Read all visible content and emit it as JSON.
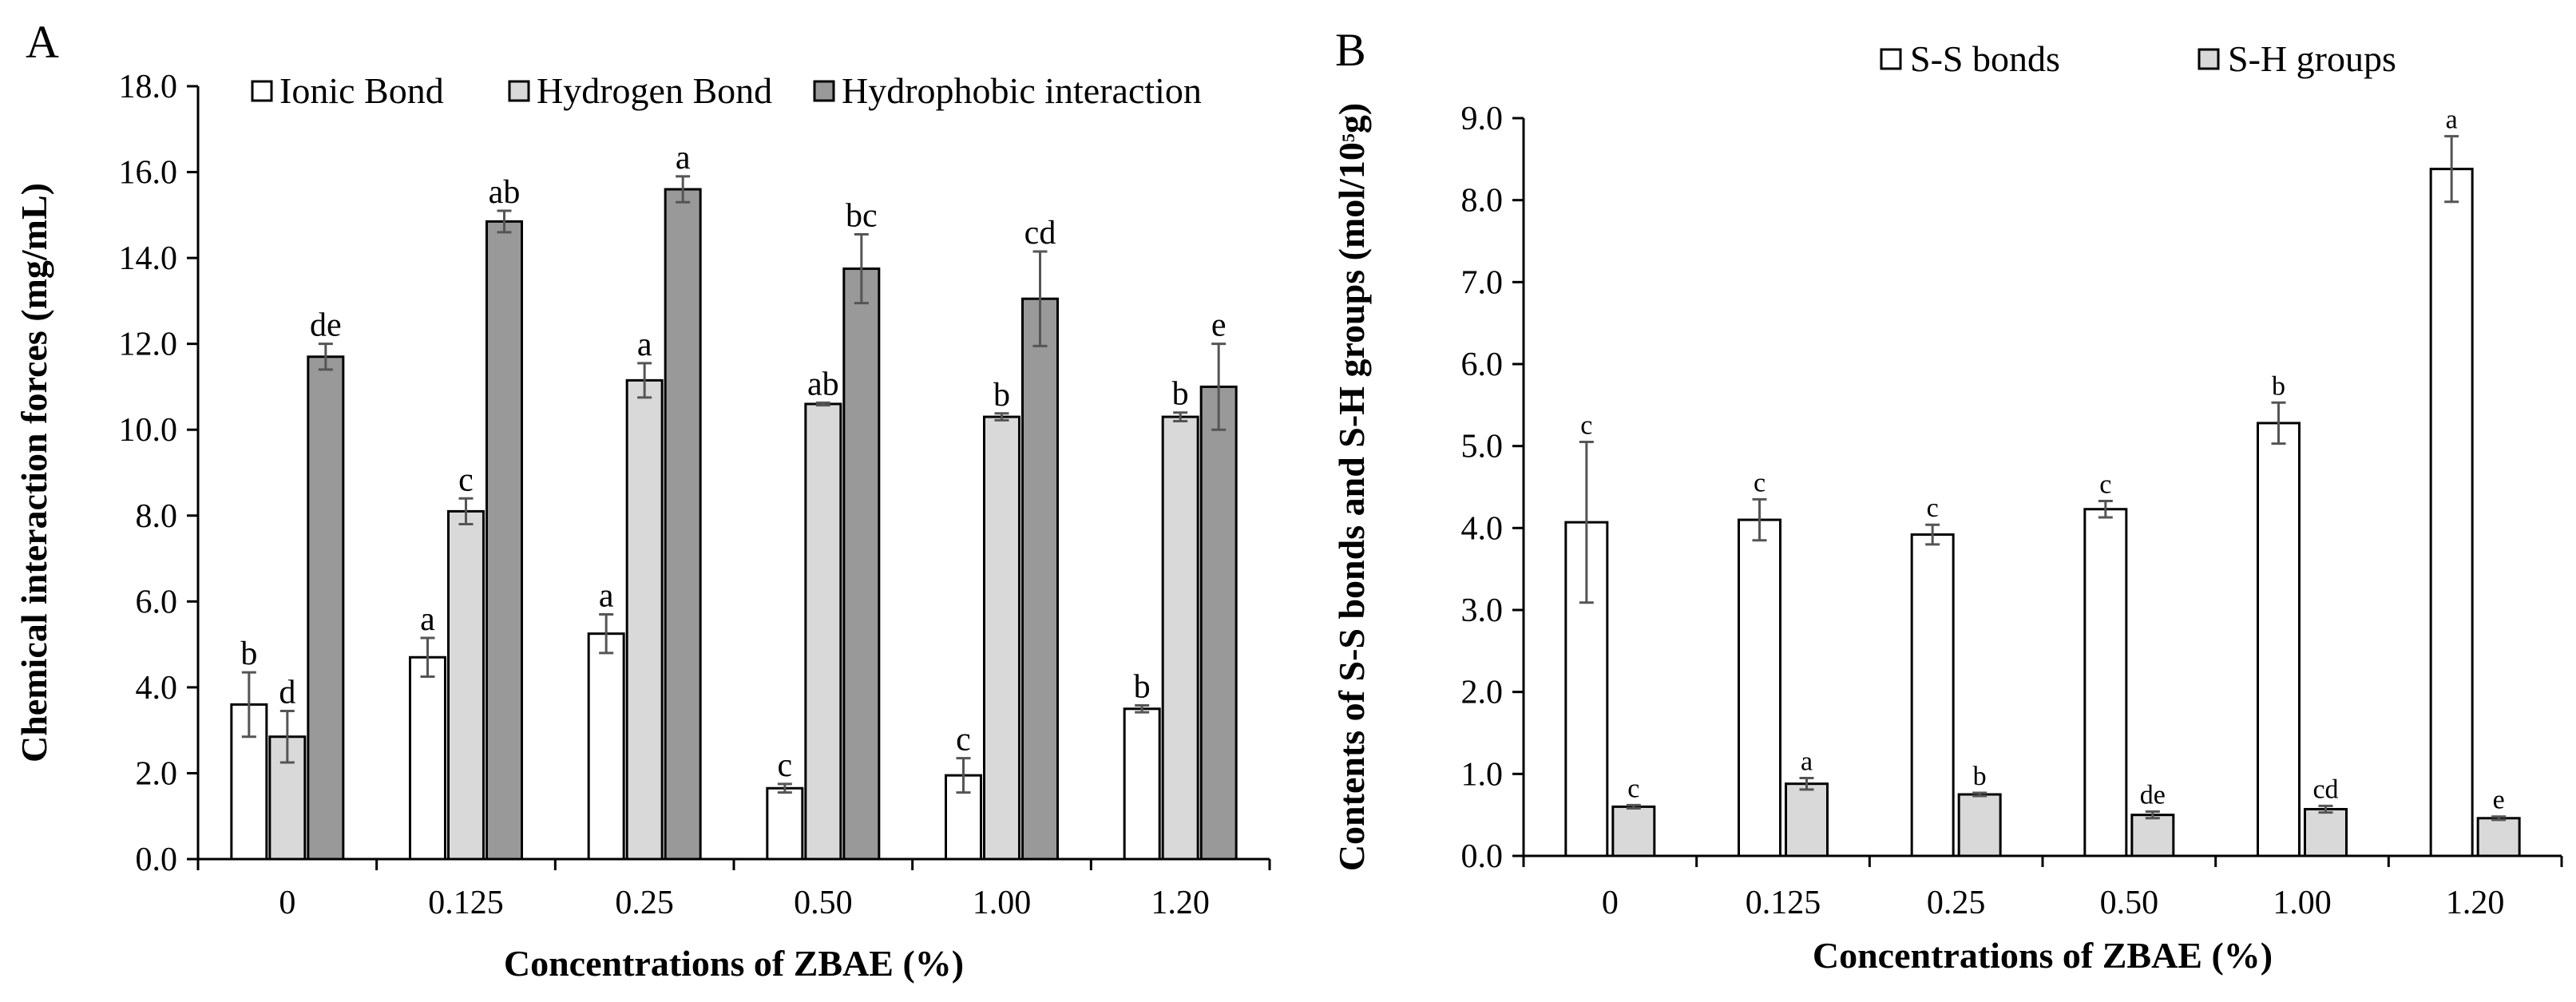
{
  "chart_data": [
    {
      "type": "bar",
      "panel": "A",
      "title": "",
      "xlabel": "Concentrations of ZBAE (%)",
      "ylabel": "Chemical interaction forces (mg/mL)",
      "ylim": [
        0,
        18
      ],
      "ytick_step": 2,
      "ytick_labels": [
        "0.0",
        "2.0",
        "4.0",
        "6.0",
        "8.0",
        "10.0",
        "12.0",
        "14.0",
        "16.0",
        "18.0"
      ],
      "grid": false,
      "legend_position": "top",
      "categories": [
        "0",
        "0.125",
        "0.25",
        "0.50",
        "1.00",
        "1.20"
      ],
      "series": [
        {
          "name": "Ionic Bond",
          "color": "#ffffff",
          "values": [
            3.6,
            4.7,
            5.25,
            1.65,
            1.95,
            3.5
          ],
          "errors": [
            0.75,
            0.45,
            0.45,
            0.1,
            0.4,
            0.08
          ],
          "labels": [
            "b",
            "a",
            "a",
            "c",
            "c",
            "b"
          ]
        },
        {
          "name": "Hydrogen Bond",
          "color": "#d9d9d9",
          "values": [
            2.85,
            8.1,
            11.15,
            10.6,
            10.3,
            10.3
          ],
          "errors": [
            0.6,
            0.3,
            0.4,
            0.03,
            0.08,
            0.1
          ],
          "labels": [
            "d",
            "c",
            "a",
            "ab",
            "b",
            "b"
          ]
        },
        {
          "name": "Hydrophobic interaction",
          "color": "#999999",
          "values": [
            11.7,
            14.85,
            15.6,
            13.75,
            13.05,
            11.0
          ],
          "errors": [
            0.3,
            0.25,
            0.3,
            0.8,
            1.1,
            1.0
          ],
          "labels": [
            "de",
            "ab",
            "a",
            "bc",
            "cd",
            "e"
          ]
        }
      ]
    },
    {
      "type": "bar",
      "panel": "B",
      "title": "",
      "xlabel": "Concentrations of ZBAE (%)",
      "ylabel_main": "Contents of S-S bonds and S-H groups (mol/10",
      "ylabel_sup": "5",
      "ylabel_end": "g)",
      "ylim": [
        0,
        9
      ],
      "ytick_step": 1,
      "ytick_labels": [
        "0.0",
        "1.0",
        "2.0",
        "3.0",
        "4.0",
        "5.0",
        "6.0",
        "7.0",
        "8.0",
        "9.0"
      ],
      "grid": false,
      "legend_position": "top",
      "categories": [
        "0",
        "0.125",
        "0.25",
        "0.50",
        "1.00",
        "1.20"
      ],
      "series": [
        {
          "name": "S-S bonds",
          "color": "#ffffff",
          "values": [
            4.07,
            4.1,
            3.92,
            4.23,
            5.28,
            8.38
          ],
          "errors": [
            0.98,
            0.25,
            0.12,
            0.1,
            0.25,
            0.4
          ],
          "labels": [
            "c",
            "c",
            "c",
            "c",
            "b",
            "a"
          ]
        },
        {
          "name": "S-H groups",
          "color": "#d9d9d9",
          "values": [
            0.6,
            0.88,
            0.75,
            0.5,
            0.57,
            0.46
          ],
          "errors": [
            0.02,
            0.07,
            0.02,
            0.04,
            0.04,
            0.02
          ],
          "labels": [
            "c",
            "a",
            "b",
            "de",
            "cd",
            "e"
          ]
        }
      ]
    }
  ]
}
